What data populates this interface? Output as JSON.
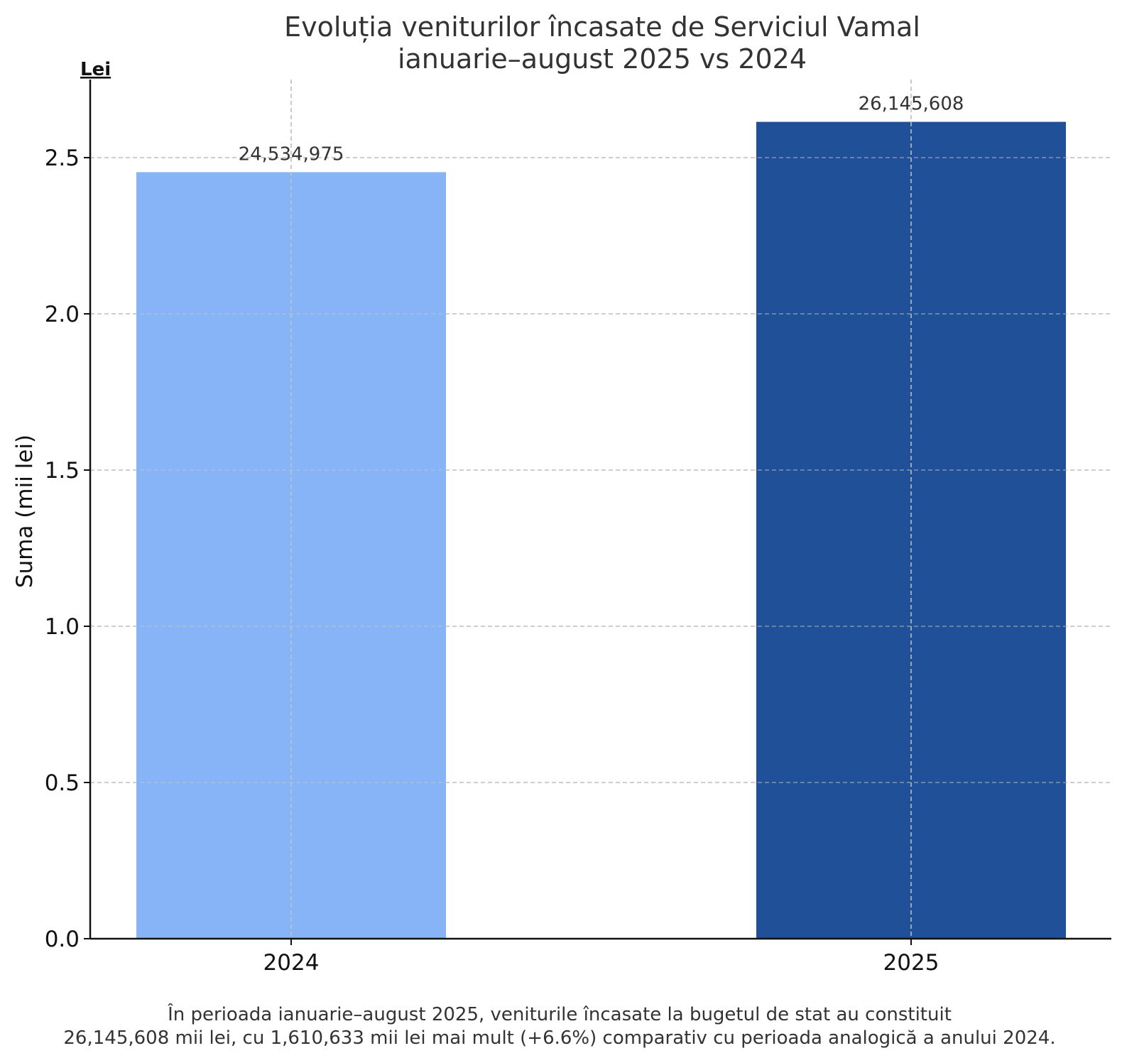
{
  "chart_data": {
    "type": "bar",
    "title": [
      "Evoluția veniturilor încasate de Serviciul Vamal",
      "ianuarie–august 2025 vs 2024"
    ],
    "unit_label": "Lei",
    "ylabel": "Suma (mii lei)",
    "xlabel": "",
    "categories": [
      "2024",
      "2025"
    ],
    "values": [
      2.4534975,
      2.6145608
    ],
    "data_labels": [
      "24,534,975",
      "26,145,608"
    ],
    "colors": [
      "#87b4f6",
      "#1f5098"
    ],
    "ylim": [
      0,
      2.75
    ],
    "yticks": [
      0.0,
      0.5,
      1.0,
      1.5,
      2.0,
      2.5
    ],
    "ytick_labels": [
      "0.0",
      "0.5",
      "1.0",
      "1.5",
      "2.0",
      "2.5"
    ],
    "grid": true,
    "grid_style": "dashed",
    "footnote": [
      "În perioada ianuarie–august 2025, veniturile încasate la bugetul de stat au constituit",
      "26,145,608 mii lei, cu 1,610,633 mii lei mai mult (+6.6%) comparativ cu perioada analogică a anului 2024."
    ]
  }
}
